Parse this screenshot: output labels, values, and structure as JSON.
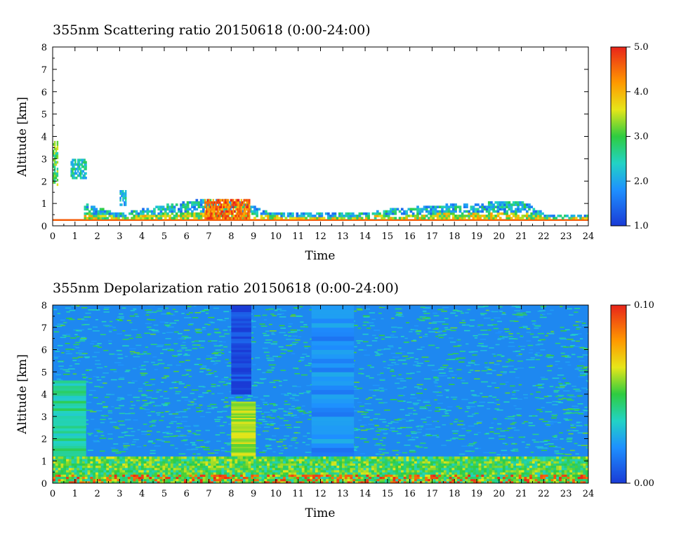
{
  "chart_data": [
    {
      "type": "heatmap",
      "title": "355nm Scattering ratio  20150618 (0:00-24:00)",
      "xlabel": "Time",
      "ylabel": "Altitude [km]",
      "xlim": [
        0,
        24
      ],
      "ylim": [
        0,
        8
      ],
      "xticks": [
        "0",
        "1",
        "2",
        "3",
        "4",
        "5",
        "6",
        "7",
        "8",
        "9",
        "10",
        "11",
        "12",
        "13",
        "14",
        "15",
        "16",
        "17",
        "18",
        "19",
        "20",
        "21",
        "22",
        "23",
        "24"
      ],
      "yticks": [
        "0",
        "1",
        "2",
        "3",
        "4",
        "5",
        "6",
        "7",
        "8"
      ],
      "colorbar": {
        "min": 1.0,
        "max": 5.0,
        "ticks": [
          "1.0",
          "2.0",
          "3.0",
          "4.0",
          "5.0"
        ]
      },
      "layer_top_km": [
        [
          0,
          0.35
        ],
        [
          1.5,
          0.9
        ],
        [
          3,
          0.5
        ],
        [
          5,
          0.9
        ],
        [
          7,
          1.2
        ],
        [
          8.5,
          1.0
        ],
        [
          9.5,
          0.6
        ],
        [
          11.5,
          0.55
        ],
        [
          13.5,
          0.5
        ],
        [
          15,
          0.7
        ],
        [
          17.5,
          0.9
        ],
        [
          19.5,
          1.0
        ],
        [
          21,
          1.1
        ],
        [
          22,
          0.5
        ],
        [
          24,
          0.4
        ]
      ],
      "features": [
        {
          "t0": 0.0,
          "t1": 0.2,
          "z0": 1.8,
          "z1": 3.8,
          "value": 3.0
        },
        {
          "t0": 0.8,
          "t1": 1.5,
          "z0": 2.1,
          "z1": 3.0,
          "value": 2.4
        },
        {
          "t0": 6.8,
          "t1": 8.8,
          "z0": 0.3,
          "z1": 1.1,
          "value": 4.5
        },
        {
          "t0": 3.0,
          "t1": 3.3,
          "z0": 0.9,
          "z1": 1.6,
          "value": 2.2
        }
      ]
    },
    {
      "type": "heatmap",
      "title": "355nm Depolarization ratio  20150618 (0:00-24:00)",
      "xlabel": "Time",
      "ylabel": "Altitude [km]",
      "xlim": [
        0,
        24
      ],
      "ylim": [
        0,
        8
      ],
      "xticks": [
        "0",
        "1",
        "2",
        "3",
        "4",
        "5",
        "6",
        "7",
        "8",
        "9",
        "10",
        "11",
        "12",
        "13",
        "14",
        "15",
        "16",
        "17",
        "18",
        "19",
        "20",
        "21",
        "22",
        "23",
        "24"
      ],
      "yticks": [
        "0",
        "1",
        "2",
        "3",
        "4",
        "5",
        "6",
        "7",
        "8"
      ],
      "colorbar": {
        "min": 0.0,
        "max": 0.1,
        "ticks": [
          "0.00",
          "0.10"
        ]
      },
      "features": [
        {
          "t0": 8.0,
          "t1": 8.9,
          "z0": 4.0,
          "z1": 8.0,
          "value": 0.003
        },
        {
          "t0": 8.0,
          "t1": 9.1,
          "z0": 1.0,
          "z1": 3.6,
          "value": 0.06
        },
        {
          "t0": 0.0,
          "t1": 1.5,
          "z0": 0.0,
          "z1": 4.5,
          "value": 0.04
        },
        {
          "t0": 11.6,
          "t1": 13.5,
          "z0": 0.0,
          "z1": 8.0,
          "value": 0.02
        }
      ],
      "boundary_layer": {
        "top_km": 1.2,
        "value": 0.05
      }
    }
  ]
}
